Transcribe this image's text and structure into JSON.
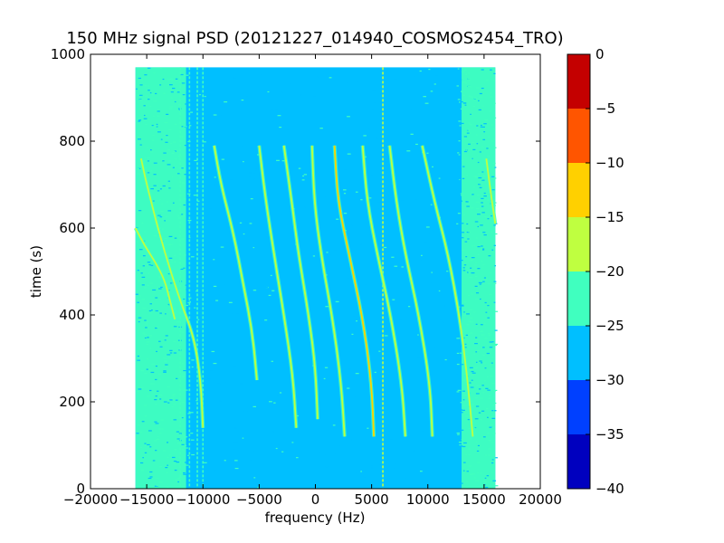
{
  "chart_data": {
    "type": "heatmap",
    "title": "150 MHz signal PSD (20121227_014940_COSMOS2454_TRO)",
    "xlabel": "frequency (Hz)",
    "ylabel": "time (s)",
    "xlim": [
      -20000,
      20000
    ],
    "ylim": [
      0,
      1000
    ],
    "xticks": [
      -20000,
      -15000,
      -10000,
      -5000,
      0,
      5000,
      10000,
      15000,
      20000
    ],
    "yticks": [
      0,
      200,
      400,
      600,
      800,
      1000
    ],
    "xtick_labels": [
      "−20000",
      "−15000",
      "−10000",
      "−5000",
      "0",
      "5000",
      "10000",
      "15000",
      "20000"
    ],
    "ytick_labels": [
      "0",
      "200",
      "400",
      "600",
      "800",
      "1000"
    ],
    "data_extent": {
      "freq": [
        -16000,
        16000
      ],
      "time": [
        0,
        970
      ]
    },
    "background_level": -27.5,
    "band_edge_level": -22.5,
    "colorbar": {
      "levels": [
        -40,
        -35,
        -30,
        -25,
        -20,
        -15,
        -10,
        -5,
        0
      ],
      "tick_labels": [
        "−40",
        "−35",
        "−30",
        "−25",
        "−20",
        "−15",
        "−10",
        "−5",
        "0"
      ],
      "colors": [
        "#0000bf",
        "#0040ff",
        "#00bfff",
        "#40ffbf",
        "#bfff40",
        "#ffd000",
        "#ff5500",
        "#c40000"
      ]
    },
    "traces": [
      {
        "name": "trace-1",
        "points": [
          [
            -12500,
            390
          ],
          [
            -12900,
            430
          ],
          [
            -13400,
            480
          ],
          [
            -14200,
            520
          ],
          [
            -15200,
            560
          ],
          [
            -16000,
            600
          ]
        ],
        "level": -20
      },
      {
        "name": "trace-2",
        "points": [
          [
            -10000,
            140
          ],
          [
            -10200,
            250
          ],
          [
            -10800,
            350
          ],
          [
            -12000,
            430
          ],
          [
            -13600,
            560
          ],
          [
            -15000,
            700
          ],
          [
            -15500,
            760
          ]
        ],
        "level": -20
      },
      {
        "name": "trace-3",
        "points": [
          [
            -5200,
            250
          ],
          [
            -5600,
            360
          ],
          [
            -6400,
            470
          ],
          [
            -7300,
            590
          ],
          [
            -8400,
            700
          ],
          [
            -9000,
            790
          ]
        ],
        "level": -20
      },
      {
        "name": "trace-4",
        "points": [
          [
            -1700,
            140
          ],
          [
            -2000,
            260
          ],
          [
            -2800,
            400
          ],
          [
            -3800,
            560
          ],
          [
            -4500,
            680
          ],
          [
            -5000,
            790
          ]
        ],
        "level": -17
      },
      {
        "name": "trace-5",
        "points": [
          [
            200,
            160
          ],
          [
            0,
            280
          ],
          [
            -600,
            400
          ],
          [
            -1500,
            540
          ],
          [
            -2100,
            660
          ],
          [
            -2800,
            790
          ]
        ],
        "level": -17
      },
      {
        "name": "trace-6",
        "points": [
          [
            2600,
            120
          ],
          [
            2300,
            240
          ],
          [
            1600,
            380
          ],
          [
            500,
            540
          ],
          [
            -100,
            660
          ],
          [
            -300,
            790
          ]
        ],
        "level": -17
      },
      {
        "name": "trace-7",
        "points": [
          [
            5200,
            120
          ],
          [
            5000,
            240
          ],
          [
            4300,
            380
          ],
          [
            3000,
            540
          ],
          [
            2000,
            660
          ],
          [
            1700,
            790
          ]
        ],
        "level": -12
      },
      {
        "name": "trace-8",
        "points": [
          [
            8000,
            120
          ],
          [
            7700,
            240
          ],
          [
            6700,
            400
          ],
          [
            5500,
            540
          ],
          [
            4600,
            660
          ],
          [
            4200,
            790
          ]
        ],
        "level": -17
      },
      {
        "name": "trace-9",
        "points": [
          [
            10400,
            120
          ],
          [
            10200,
            240
          ],
          [
            9200,
            400
          ],
          [
            8000,
            540
          ],
          [
            7200,
            660
          ],
          [
            6600,
            790
          ]
        ],
        "level": -17
      },
      {
        "name": "trace-10",
        "points": [
          [
            14000,
            120
          ],
          [
            13500,
            260
          ],
          [
            12800,
            400
          ],
          [
            11800,
            540
          ],
          [
            10600,
            660
          ],
          [
            9500,
            790
          ]
        ],
        "level": -20
      },
      {
        "name": "trace-11",
        "points": [
          [
            16000,
            610
          ],
          [
            15600,
            680
          ],
          [
            15200,
            760
          ]
        ],
        "level": -20
      }
    ],
    "vertical_lines": [
      {
        "freq": -12000,
        "level": -22
      },
      {
        "freq": -11200,
        "level": -22
      },
      {
        "freq": -10500,
        "level": -22
      },
      {
        "freq": -10000,
        "level": -22
      },
      {
        "freq": 6000,
        "level": -20
      }
    ]
  }
}
